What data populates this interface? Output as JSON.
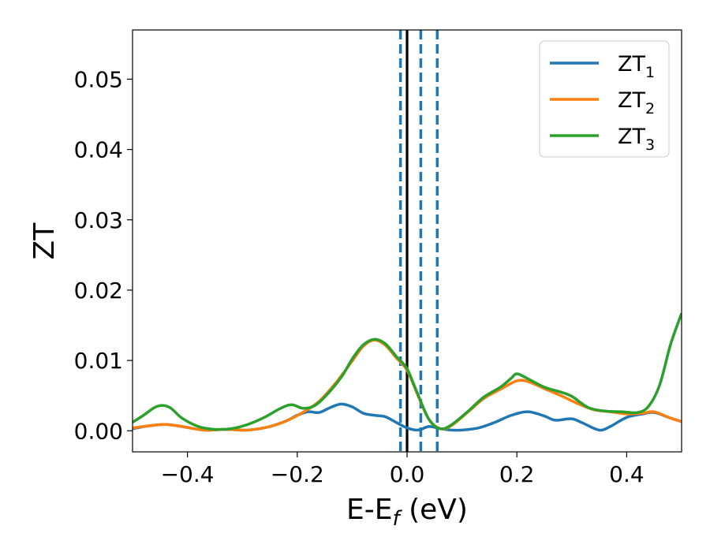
{
  "chart_data": {
    "type": "line",
    "xlabel": "E-E",
    "xlabel_sub": "f",
    "xlabel_unit": " (eV)",
    "ylabel": "ZT",
    "xlim": [
      -0.5,
      0.5
    ],
    "ylim": [
      -0.003,
      0.057
    ],
    "grid": false,
    "legend_position": "top-right",
    "x_ticks": [
      -0.4,
      -0.2,
      0.0,
      0.2,
      0.4
    ],
    "x_tick_labels": [
      "−0.4",
      "−0.2",
      "0.0",
      "0.2",
      "0.4"
    ],
    "y_ticks": [
      0.0,
      0.01,
      0.02,
      0.03,
      0.04,
      0.05
    ],
    "y_tick_labels": [
      "0.00",
      "0.01",
      "0.02",
      "0.03",
      "0.04",
      "0.05"
    ],
    "vlines": [
      {
        "x": -0.012,
        "style": "dashed",
        "color": "#1f77b4"
      },
      {
        "x": 0.0,
        "style": "solid",
        "color": "#000000"
      },
      {
        "x": 0.025,
        "style": "dashed",
        "color": "#1f77b4"
      },
      {
        "x": 0.055,
        "style": "dashed",
        "color": "#1f77b4"
      }
    ],
    "series": [
      {
        "name": "ZT",
        "sub": "1",
        "color": "#1f77b4",
        "points": [
          [
            -0.5,
            0.0003
          ],
          [
            -0.47,
            0.0007
          ],
          [
            -0.44,
            0.0009
          ],
          [
            -0.41,
            0.0006
          ],
          [
            -0.37,
            0.0001
          ],
          [
            -0.33,
            0.0002
          ],
          [
            -0.29,
            0.0001
          ],
          [
            -0.25,
            0.0006
          ],
          [
            -0.22,
            0.0014
          ],
          [
            -0.2,
            0.0022
          ],
          [
            -0.18,
            0.0027
          ],
          [
            -0.16,
            0.0026
          ],
          [
            -0.14,
            0.0033
          ],
          [
            -0.12,
            0.0038
          ],
          [
            -0.1,
            0.0034
          ],
          [
            -0.08,
            0.0025
          ],
          [
            -0.06,
            0.0022
          ],
          [
            -0.04,
            0.002
          ],
          [
            -0.02,
            0.0012
          ],
          [
            0.0,
            0.0004
          ],
          [
            0.02,
            0.0001
          ],
          [
            0.04,
            0.0006
          ],
          [
            0.06,
            0.0003
          ],
          [
            0.08,
            0.0001
          ],
          [
            0.1,
            0.0001
          ],
          [
            0.13,
            0.0004
          ],
          [
            0.16,
            0.0012
          ],
          [
            0.19,
            0.0022
          ],
          [
            0.22,
            0.0027
          ],
          [
            0.25,
            0.0021
          ],
          [
            0.27,
            0.0015
          ],
          [
            0.3,
            0.0017
          ],
          [
            0.32,
            0.0011
          ],
          [
            0.35,
            0.0001
          ],
          [
            0.37,
            0.0006
          ],
          [
            0.4,
            0.0019
          ],
          [
            0.43,
            0.0024
          ],
          [
            0.45,
            0.0026
          ],
          [
            0.48,
            0.0018
          ],
          [
            0.5,
            0.0013
          ]
        ]
      },
      {
        "name": "ZT",
        "sub": "2",
        "color": "#ff7f0e",
        "points": [
          [
            -0.5,
            0.0004
          ],
          [
            -0.47,
            0.0007
          ],
          [
            -0.44,
            0.0009
          ],
          [
            -0.41,
            0.0006
          ],
          [
            -0.37,
            0.0001
          ],
          [
            -0.33,
            0.0002
          ],
          [
            -0.29,
            0.0001
          ],
          [
            -0.25,
            0.0006
          ],
          [
            -0.22,
            0.0014
          ],
          [
            -0.19,
            0.0026
          ],
          [
            -0.16,
            0.0042
          ],
          [
            -0.13,
            0.0068
          ],
          [
            -0.1,
            0.0099
          ],
          [
            -0.08,
            0.012
          ],
          [
            -0.06,
            0.0129
          ],
          [
            -0.04,
            0.0122
          ],
          [
            -0.02,
            0.0104
          ],
          [
            0.0,
            0.0086
          ],
          [
            0.02,
            0.005
          ],
          [
            0.04,
            0.0016
          ],
          [
            0.06,
            0.0003
          ],
          [
            0.08,
            0.0007
          ],
          [
            0.11,
            0.0026
          ],
          [
            0.14,
            0.0046
          ],
          [
            0.17,
            0.0059
          ],
          [
            0.2,
            0.0071
          ],
          [
            0.22,
            0.007
          ],
          [
            0.25,
            0.006
          ],
          [
            0.28,
            0.005
          ],
          [
            0.31,
            0.0039
          ],
          [
            0.34,
            0.003
          ],
          [
            0.37,
            0.0027
          ],
          [
            0.4,
            0.0024
          ],
          [
            0.43,
            0.0025
          ],
          [
            0.45,
            0.0027
          ],
          [
            0.48,
            0.0018
          ],
          [
            0.5,
            0.0013
          ]
        ]
      },
      {
        "name": "ZT",
        "sub": "3",
        "color": "#2ca02c",
        "points": [
          [
            -0.5,
            0.0012
          ],
          [
            -0.48,
            0.0022
          ],
          [
            -0.46,
            0.0033
          ],
          [
            -0.445,
            0.0036
          ],
          [
            -0.43,
            0.0032
          ],
          [
            -0.41,
            0.0018
          ],
          [
            -0.38,
            0.0006
          ],
          [
            -0.35,
            0.0002
          ],
          [
            -0.32,
            0.0003
          ],
          [
            -0.29,
            0.0009
          ],
          [
            -0.26,
            0.0019
          ],
          [
            -0.23,
            0.0032
          ],
          [
            -0.21,
            0.0037
          ],
          [
            -0.19,
            0.0032
          ],
          [
            -0.17,
            0.0035
          ],
          [
            -0.15,
            0.0048
          ],
          [
            -0.12,
            0.0076
          ],
          [
            -0.1,
            0.0102
          ],
          [
            -0.08,
            0.0122
          ],
          [
            -0.06,
            0.013
          ],
          [
            -0.04,
            0.0124
          ],
          [
            -0.02,
            0.0106
          ],
          [
            0.0,
            0.0088
          ],
          [
            0.02,
            0.0051
          ],
          [
            0.04,
            0.0016
          ],
          [
            0.06,
            0.0003
          ],
          [
            0.08,
            0.0008
          ],
          [
            0.11,
            0.0027
          ],
          [
            0.14,
            0.0048
          ],
          [
            0.17,
            0.0062
          ],
          [
            0.19,
            0.0075
          ],
          [
            0.2,
            0.0081
          ],
          [
            0.22,
            0.0074
          ],
          [
            0.25,
            0.0062
          ],
          [
            0.28,
            0.0055
          ],
          [
            0.3,
            0.0049
          ],
          [
            0.33,
            0.0033
          ],
          [
            0.36,
            0.0028
          ],
          [
            0.39,
            0.0027
          ],
          [
            0.42,
            0.0026
          ],
          [
            0.44,
            0.0035
          ],
          [
            0.46,
            0.0065
          ],
          [
            0.48,
            0.0123
          ],
          [
            0.5,
            0.0167
          ]
        ]
      }
    ]
  }
}
